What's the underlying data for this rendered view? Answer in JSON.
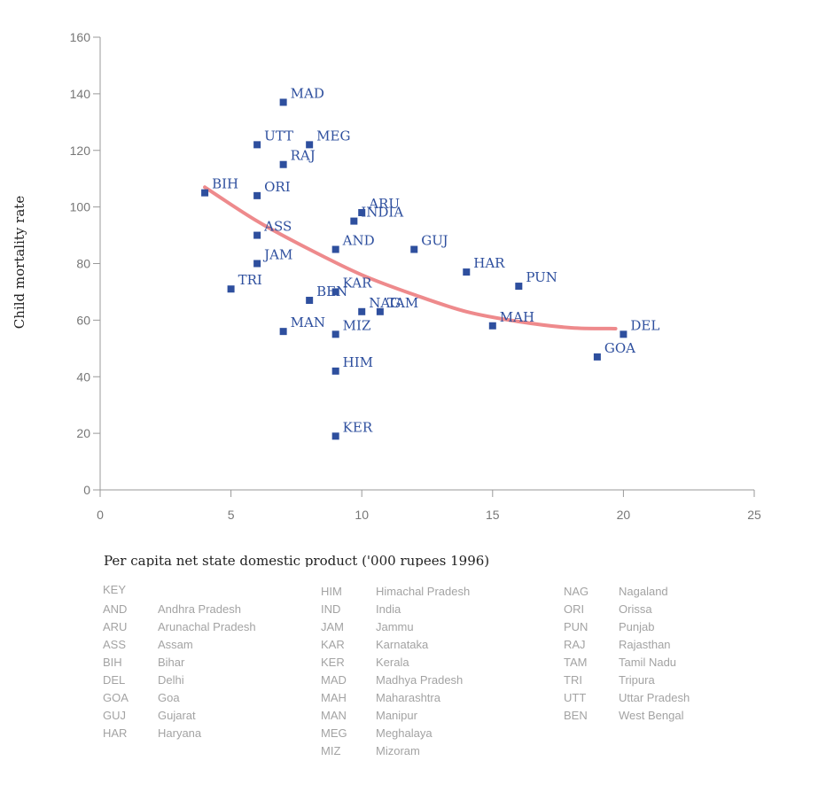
{
  "chart_data": {
    "type": "scatter",
    "xlabel": "Per capita net state domestic product ('000 rupees 1996)",
    "ylabel": "Child mortality rate",
    "xlim": [
      0,
      25
    ],
    "ylim": [
      0,
      160
    ],
    "x_ticks": [
      "0",
      "5",
      "10",
      "15",
      "20",
      "25"
    ],
    "y_ticks": [
      "0",
      "20",
      "40",
      "60",
      "80",
      "100",
      "120",
      "140",
      "160"
    ],
    "grid": false,
    "point_color": "#2e4f9e",
    "label_color": "#2e4f9e",
    "trend_color": "#ee8a8c",
    "points": [
      {
        "label": "MAD",
        "x": 7,
        "y": 137
      },
      {
        "label": "UTT",
        "x": 6,
        "y": 122
      },
      {
        "label": "MEG",
        "x": 8,
        "y": 122
      },
      {
        "label": "RAJ",
        "x": 7,
        "y": 115
      },
      {
        "label": "BIH",
        "x": 4,
        "y": 105
      },
      {
        "label": "ORI",
        "x": 6,
        "y": 104
      },
      {
        "label": "ARU",
        "x": 10,
        "y": 98
      },
      {
        "label": "INDIA",
        "x": 9.7,
        "y": 95
      },
      {
        "label": "ASS",
        "x": 6,
        "y": 90
      },
      {
        "label": "AND",
        "x": 9,
        "y": 85
      },
      {
        "label": "GUJ",
        "x": 12,
        "y": 85
      },
      {
        "label": "JAM",
        "x": 6,
        "y": 80
      },
      {
        "label": "HAR",
        "x": 14,
        "y": 77
      },
      {
        "label": "PUN",
        "x": 16,
        "y": 72
      },
      {
        "label": "TRI",
        "x": 5,
        "y": 71
      },
      {
        "label": "KAR",
        "x": 9,
        "y": 70
      },
      {
        "label": "BEN",
        "x": 8,
        "y": 67
      },
      {
        "label": "NAG",
        "x": 10,
        "y": 63
      },
      {
        "label": "TAM",
        "x": 10.7,
        "y": 63
      },
      {
        "label": "MAH",
        "x": 15,
        "y": 58
      },
      {
        "label": "MAN",
        "x": 7,
        "y": 56
      },
      {
        "label": "MIZ",
        "x": 9,
        "y": 55
      },
      {
        "label": "DEL",
        "x": 20,
        "y": 55
      },
      {
        "label": "GOA",
        "x": 19,
        "y": 47
      },
      {
        "label": "HIM",
        "x": 9,
        "y": 42
      },
      {
        "label": "KER",
        "x": 9,
        "y": 19
      }
    ],
    "trend_line": [
      {
        "x": 4,
        "y": 107
      },
      {
        "x": 6,
        "y": 95
      },
      {
        "x": 8,
        "y": 85
      },
      {
        "x": 10,
        "y": 76
      },
      {
        "x": 12,
        "y": 69
      },
      {
        "x": 14,
        "y": 63
      },
      {
        "x": 16,
        "y": 59.5
      },
      {
        "x": 18,
        "y": 57.3
      },
      {
        "x": 19.7,
        "y": 57
      }
    ]
  },
  "key": {
    "title": "KEY",
    "columns": [
      [
        {
          "abbr": "",
          "name": ""
        },
        {
          "abbr": "AND",
          "name": "Andhra Pradesh"
        },
        {
          "abbr": "ARU",
          "name": "Arunachal Pradesh"
        },
        {
          "abbr": "ASS",
          "name": "Assam"
        },
        {
          "abbr": "BIH",
          "name": "Bihar"
        },
        {
          "abbr": "DEL",
          "name": "Delhi"
        },
        {
          "abbr": "GOA",
          "name": "Goa"
        },
        {
          "abbr": "GUJ",
          "name": "Gujarat"
        },
        {
          "abbr": "HAR",
          "name": "Haryana"
        }
      ],
      [
        {
          "abbr": "HIM",
          "name": "Himachal Pradesh"
        },
        {
          "abbr": "IND",
          "name": "India"
        },
        {
          "abbr": "JAM",
          "name": "Jammu"
        },
        {
          "abbr": "KAR",
          "name": "Karnataka"
        },
        {
          "abbr": "KER",
          "name": "Kerala"
        },
        {
          "abbr": "MAD",
          "name": "Madhya Pradesh"
        },
        {
          "abbr": "MAH",
          "name": "Maharashtra"
        },
        {
          "abbr": "MAN",
          "name": "Manipur"
        },
        {
          "abbr": "MEG",
          "name": "Meghalaya"
        },
        {
          "abbr": "MIZ",
          "name": "Mizoram"
        }
      ],
      [
        {
          "abbr": "NAG",
          "name": "Nagaland"
        },
        {
          "abbr": "ORI",
          "name": "Orissa"
        },
        {
          "abbr": "PUN",
          "name": "Punjab"
        },
        {
          "abbr": "RAJ",
          "name": "Rajasthan"
        },
        {
          "abbr": "TAM",
          "name": "Tamil Nadu"
        },
        {
          "abbr": "TRI",
          "name": "Tripura"
        },
        {
          "abbr": "UTT",
          "name": "Uttar Pradesh"
        },
        {
          "abbr": "BEN",
          "name": "West Bengal"
        }
      ]
    ]
  }
}
